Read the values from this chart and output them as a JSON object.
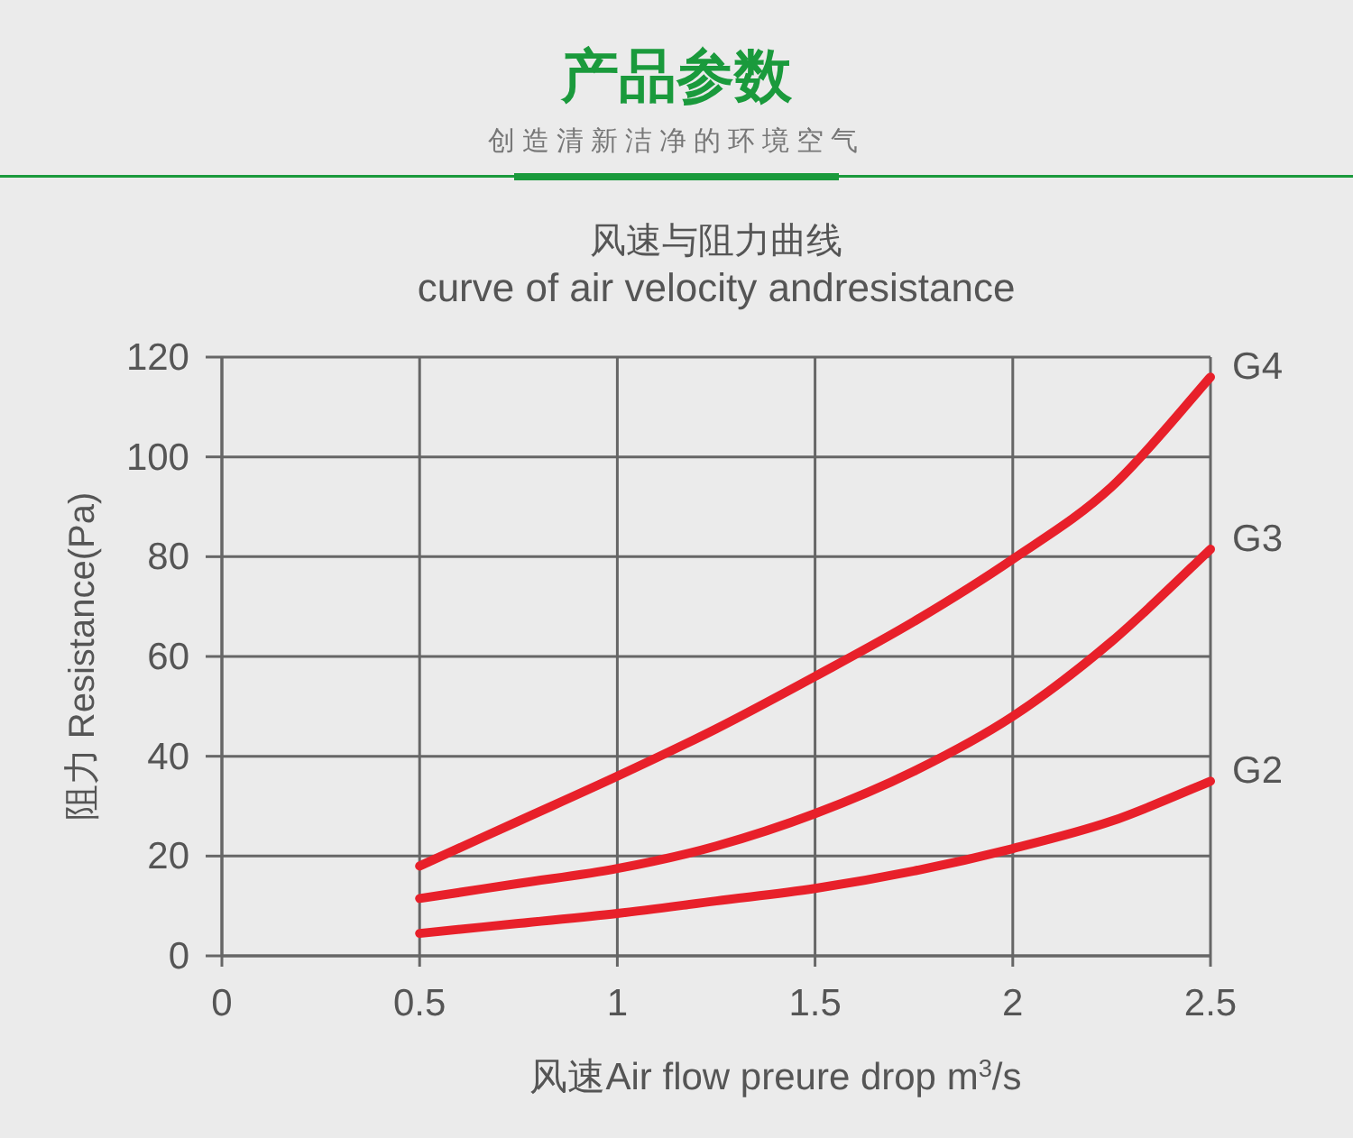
{
  "chart_data": {
    "type": "line",
    "title": "产品参数",
    "subtitle": "创造清新洁净的环境空气",
    "annotations": [
      "风速与阻力曲线",
      "curve of air velocity andresistance"
    ],
    "xlabel": "风速Air flow preure drop m$^{3}$/s",
    "ylabel": "阻力 Resistance(Pa)",
    "x": [
      0.5,
      0.75,
      1.0,
      1.25,
      1.5,
      1.75,
      2.0,
      2.25,
      2.5
    ],
    "series": [
      {
        "name": "G4",
        "color": "#e8202a",
        "values": [
          18,
          27,
          36,
          45.5,
          56,
          67,
          79.5,
          94,
          116
        ]
      },
      {
        "name": "G3",
        "color": "#e8202a",
        "values": [
          11.5,
          14.5,
          17.5,
          22,
          28.5,
          37,
          48,
          63,
          81.5
        ]
      },
      {
        "name": "G2",
        "color": "#e8202a",
        "values": [
          4.5,
          6.5,
          8.5,
          11,
          13.5,
          17,
          21.5,
          27,
          35
        ]
      }
    ],
    "xlim": [
      0,
      2.5
    ],
    "xticks": [
      0,
      {
        "value": 0.5,
        "label": "0.5"
      },
      1,
      {
        "value": 1.5,
        "label": "1.5"
      },
      2,
      {
        "value": 2.5,
        "label": "2.5"
      }
    ],
    "ylim": [
      0,
      120
    ],
    "yticks": [
      0,
      20,
      40,
      60,
      80,
      100,
      120
    ],
    "grid": true,
    "marker": "none",
    "line_style": "solid"
  }
}
